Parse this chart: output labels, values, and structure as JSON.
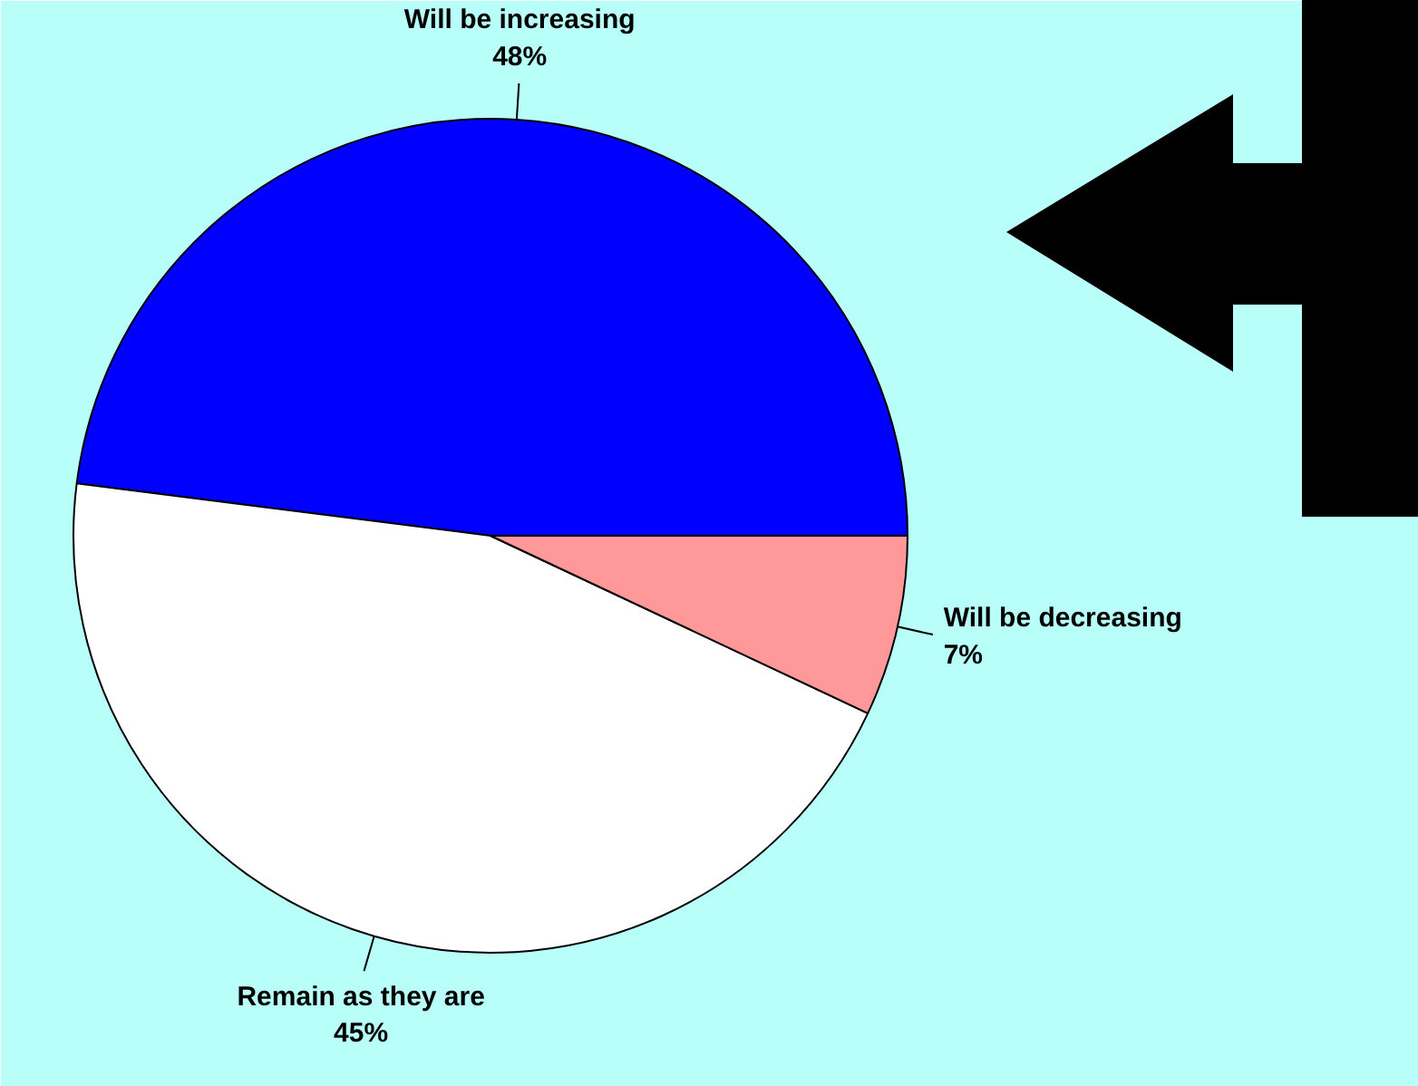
{
  "chart_data": {
    "type": "pie",
    "categories": [
      "Will be increasing",
      "Remain as they are",
      "Will be decreasing"
    ],
    "values": [
      48,
      45,
      7
    ],
    "colors": [
      "#0000ff",
      "#ffffff",
      "#ff9999"
    ],
    "value_labels": [
      "48%",
      "45%",
      "7%"
    ]
  }
}
